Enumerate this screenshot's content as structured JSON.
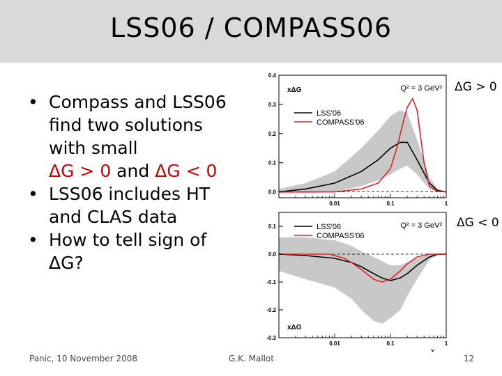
{
  "slide": {
    "title": "LSS06 / COMPASS06",
    "bullets": [
      {
        "lines": [
          "Compass and LSS06",
          "find two solutions",
          "with small"
        ],
        "last_parts": [
          "ΔG > 0",
          " and ",
          "ΔG < 0"
        ]
      },
      {
        "lines": [
          "LSS06 includes HT",
          "and CLAS data"
        ]
      },
      {
        "lines": [
          "How to tell sign of",
          "ΔG?"
        ]
      }
    ],
    "tag_top": "ΔG > 0",
    "tag_bottom": "ΔG < 0",
    "footer_left": "Panic, 10 November 2008",
    "footer_center": "G.K. Mallot",
    "page_number": "12"
  },
  "chart_data": [
    {
      "type": "line",
      "x_scale": "log",
      "xlim": [
        0.001,
        1
      ],
      "ylim": [
        -0.02,
        0.4
      ],
      "ylabel": "xΔG",
      "annotation": "Q² = 3 GeV²",
      "y_ticks": [
        "0.0",
        "0.1",
        "0.2",
        "0.3",
        "0.4"
      ],
      "x_ticks": [
        "0.01",
        "0.1",
        "1"
      ],
      "x_ticks_values": [
        0.01,
        0.1,
        1
      ],
      "y_ticks_values": [
        0,
        0.1,
        0.2,
        0.3,
        0.4
      ],
      "series": [
        {
          "name": "LSS'06",
          "color": "#000000",
          "x": [
            0.001,
            0.003,
            0.01,
            0.03,
            0.06,
            0.1,
            0.15,
            0.2,
            0.3,
            0.5,
            0.7,
            1.0
          ],
          "y": [
            0.0,
            0.01,
            0.03,
            0.07,
            0.11,
            0.15,
            0.17,
            0.17,
            0.11,
            0.03,
            0.005,
            0.0
          ]
        },
        {
          "name": "COMPASS'06",
          "color": "#dd2222",
          "x": [
            0.001,
            0.01,
            0.03,
            0.06,
            0.1,
            0.13,
            0.17,
            0.2,
            0.25,
            0.3,
            0.4,
            0.5,
            0.7,
            1.0
          ],
          "y": [
            0.0,
            0.0,
            0.01,
            0.03,
            0.08,
            0.15,
            0.24,
            0.29,
            0.32,
            0.28,
            0.1,
            0.02,
            0.002,
            0.0
          ]
        }
      ],
      "band": {
        "x": [
          0.001,
          0.003,
          0.01,
          0.03,
          0.06,
          0.1,
          0.15,
          0.2,
          0.3,
          0.5,
          0.7,
          1.0
        ],
        "upper": [
          0.01,
          0.03,
          0.07,
          0.15,
          0.21,
          0.26,
          0.28,
          0.27,
          0.18,
          0.05,
          0.01,
          0.0
        ],
        "lower": [
          -0.005,
          -0.005,
          0.0,
          0.02,
          0.04,
          0.06,
          0.08,
          0.09,
          0.06,
          0.01,
          0.0,
          0.0
        ]
      }
    },
    {
      "type": "line",
      "x_scale": "log",
      "xlim": [
        0.001,
        1
      ],
      "ylim": [
        -0.3,
        0.15
      ],
      "ylabel": "xΔG",
      "xlabel": "x",
      "annotation": "Q² = 3 GeV²",
      "y_ticks": [
        "0.1",
        "0.0",
        "-0.1",
        "-0.2",
        "-0.3"
      ],
      "x_ticks": [
        "0.01",
        "0.1",
        "1"
      ],
      "x_ticks_values": [
        0.01,
        0.1,
        1
      ],
      "y_ticks_values": [
        0.1,
        0.0,
        -0.1,
        -0.2,
        -0.3
      ],
      "series": [
        {
          "name": "LSS'06",
          "color": "#000000",
          "x": [
            0.001,
            0.003,
            0.01,
            0.02,
            0.03,
            0.05,
            0.07,
            0.1,
            0.15,
            0.2,
            0.3,
            0.5,
            0.7,
            1.0
          ],
          "y": [
            0.0,
            -0.005,
            -0.015,
            -0.03,
            -0.045,
            -0.07,
            -0.085,
            -0.095,
            -0.085,
            -0.07,
            -0.04,
            -0.01,
            0.0,
            0.0
          ]
        },
        {
          "name": "COMPASS'06",
          "color": "#dd2222",
          "x": [
            0.001,
            0.003,
            0.005,
            0.008,
            0.01,
            0.015,
            0.02,
            0.03,
            0.05,
            0.07,
            0.1,
            0.15,
            0.2,
            0.3,
            0.5,
            0.7,
            1.0
          ],
          "y": [
            0.0,
            0.0,
            0.0,
            0.0,
            -0.005,
            -0.015,
            -0.03,
            -0.055,
            -0.09,
            -0.1,
            -0.09,
            -0.06,
            -0.035,
            -0.01,
            0.0,
            0.0,
            0.0
          ]
        }
      ],
      "band": {
        "x": [
          0.001,
          0.003,
          0.01,
          0.02,
          0.03,
          0.05,
          0.07,
          0.1,
          0.15,
          0.2,
          0.3,
          0.5,
          0.7,
          1.0
        ],
        "upper": [
          0.06,
          0.06,
          0.05,
          0.03,
          0.01,
          -0.01,
          -0.025,
          -0.04,
          -0.04,
          -0.03,
          -0.015,
          0.0,
          0.0,
          0.0
        ],
        "lower": [
          -0.06,
          -0.09,
          -0.12,
          -0.16,
          -0.2,
          -0.24,
          -0.25,
          -0.23,
          -0.2,
          -0.15,
          -0.09,
          -0.02,
          -0.005,
          0.0
        ]
      }
    }
  ]
}
